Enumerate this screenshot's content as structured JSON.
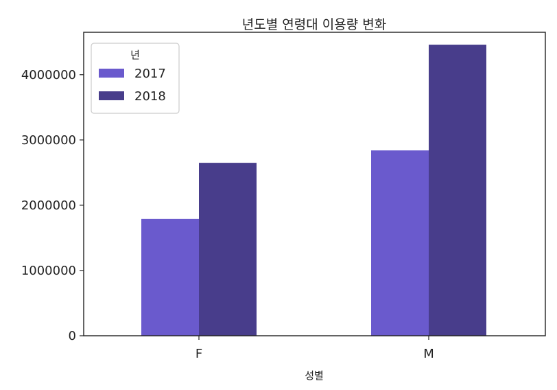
{
  "chart_data": {
    "type": "bar",
    "title": "년도별 연령대 이용량 변화",
    "xlabel": "성별",
    "ylabel": "",
    "categories": [
      "F",
      "M"
    ],
    "series": [
      {
        "name": "2017",
        "values": [
          1790000,
          2840000
        ]
      },
      {
        "name": "2018",
        "values": [
          2650000,
          4460000
        ]
      }
    ],
    "ylim": [
      0,
      4650000
    ],
    "yticks": [
      0,
      1000000,
      2000000,
      3000000,
      4000000
    ],
    "ytick_labels": [
      "0",
      "1000000",
      "2000000",
      "3000000",
      "4000000"
    ],
    "legend": {
      "title": "년",
      "position": "upper-left"
    },
    "grid": false,
    "colors": {
      "2017": "#6a5acd",
      "2018": "#483d8b",
      "axes": "#222222"
    }
  }
}
